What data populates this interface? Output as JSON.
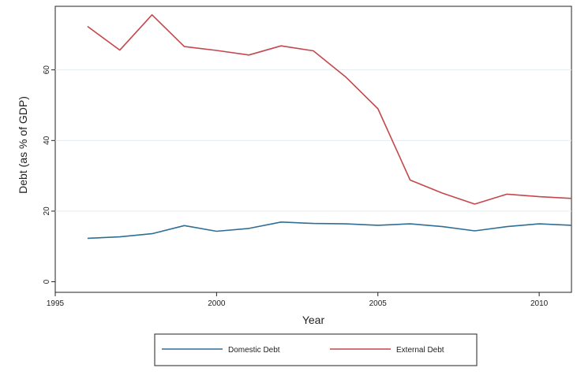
{
  "chart_data": {
    "type": "line",
    "xlabel": "Year",
    "ylabel": "Debt (as % of GDP)",
    "xlim": [
      1995,
      2011
    ],
    "ylim": [
      -3,
      78
    ],
    "xticks": [
      1995,
      2000,
      2005,
      2010
    ],
    "yticks": [
      0,
      20,
      40,
      60
    ],
    "grid": "horizontal",
    "legend_position": "bottom",
    "x": [
      1996,
      1997,
      1998,
      1999,
      2000,
      2001,
      2002,
      2003,
      2004,
      2005,
      2006,
      2007,
      2008,
      2009,
      2010,
      2011
    ],
    "series": [
      {
        "name": "Domestic Debt",
        "color": "#2e6e94",
        "values": [
          12.3,
          12.7,
          13.6,
          15.9,
          14.3,
          15.1,
          16.9,
          16.5,
          16.4,
          16.0,
          16.4,
          15.6,
          14.4,
          15.6,
          16.4,
          16.0
        ]
      },
      {
        "name": "External Debt",
        "color": "#c4474c",
        "values": [
          72.3,
          65.6,
          75.6,
          66.6,
          65.5,
          64.2,
          66.8,
          65.4,
          58.0,
          49.0,
          28.8,
          25.1,
          22.0,
          24.8,
          24.1,
          23.6
        ]
      }
    ]
  }
}
